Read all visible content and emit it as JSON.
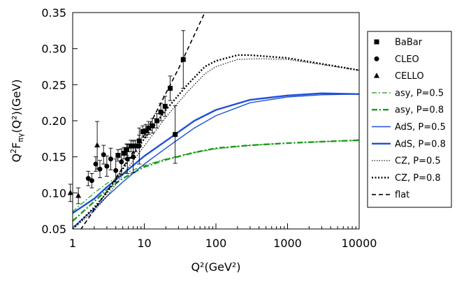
{
  "chart_data": {
    "type": "scatter",
    "xlabel": "Q²(GeV²)",
    "ylabel_parts": {
      "pre": "Q",
      "sup": "2",
      "mid": "F",
      "sub": "πγ",
      "post": "(Q²)(GeV)"
    },
    "x_scale": "log",
    "xlim": [
      1,
      10000
    ],
    "ylim": [
      0.05,
      0.35
    ],
    "xticks": [
      {
        "value": 1,
        "label": "1"
      },
      {
        "value": 10,
        "label": "10"
      },
      {
        "value": 100,
        "label": "100"
      },
      {
        "value": 1000,
        "label": "1000"
      },
      {
        "value": 10000,
        "label": "10000"
      }
    ],
    "yticks": [
      {
        "value": 0.05,
        "label": "0.05"
      },
      {
        "value": 0.1,
        "label": "0.10"
      },
      {
        "value": 0.15,
        "label": "0.15"
      },
      {
        "value": 0.2,
        "label": "0.20"
      },
      {
        "value": 0.25,
        "label": "0.25"
      },
      {
        "value": 0.3,
        "label": "0.30"
      },
      {
        "value": 0.35,
        "label": "0.35"
      }
    ],
    "grid": false,
    "legend_position": "right",
    "data_series": [
      {
        "name": "BaBar",
        "marker": "square",
        "points": [
          [
            4.3,
            0.152,
            0.008
          ],
          [
            5.2,
            0.155,
            0.008
          ],
          [
            5.7,
            0.16,
            0.008
          ],
          [
            6.5,
            0.165,
            0.008
          ],
          [
            7.5,
            0.165,
            0.008
          ],
          [
            8.5,
            0.172,
            0.008
          ],
          [
            9.5,
            0.185,
            0.008
          ],
          [
            10.5,
            0.186,
            0.009
          ],
          [
            11.5,
            0.19,
            0.009
          ],
          [
            13.0,
            0.193,
            0.01
          ],
          [
            15.0,
            0.2,
            0.01
          ],
          [
            17.0,
            0.212,
            0.012
          ],
          [
            19.5,
            0.22,
            0.014
          ],
          [
            23.0,
            0.245,
            0.017
          ],
          [
            27.0,
            0.181,
            0.04
          ],
          [
            35.0,
            0.285,
            0.04
          ]
        ]
      },
      {
        "name": "CLEO",
        "marker": "circle",
        "points": [
          [
            1.65,
            0.12,
            0.01
          ],
          [
            1.85,
            0.117,
            0.01
          ],
          [
            2.1,
            0.14,
            0.01
          ],
          [
            2.4,
            0.133,
            0.012
          ],
          [
            2.7,
            0.153,
            0.013
          ],
          [
            3.0,
            0.137,
            0.014
          ],
          [
            3.4,
            0.147,
            0.015
          ],
          [
            4.0,
            0.131,
            0.016
          ],
          [
            4.8,
            0.143,
            0.018
          ],
          [
            5.8,
            0.147,
            0.02
          ],
          [
            7.0,
            0.15,
            0.022
          ],
          [
            8.5,
            0.165,
            0.025
          ]
        ]
      },
      {
        "name": "CELLO",
        "marker": "triangle",
        "points": [
          [
            0.93,
            0.1,
            0.012
          ],
          [
            1.2,
            0.096,
            0.011
          ],
          [
            2.2,
            0.166,
            0.033
          ]
        ]
      }
    ],
    "curve_series": [
      {
        "name": "asy, P=0.5",
        "color": "#1a9a1a",
        "width": 1.2,
        "dash": "7,3,2,3",
        "x": [
          1,
          2,
          3,
          5,
          10,
          20,
          50,
          100,
          300,
          1000,
          3000,
          10000
        ],
        "y": [
          0.074,
          0.1,
          0.113,
          0.126,
          0.138,
          0.147,
          0.156,
          0.161,
          0.166,
          0.169,
          0.171,
          0.173
        ]
      },
      {
        "name": "asy, P=0.8",
        "color": "#1a9a1a",
        "width": 2.4,
        "dash": "8,3,2,3",
        "x": [
          1,
          2,
          3,
          5,
          10,
          20,
          50,
          100,
          300,
          1000,
          3000,
          10000
        ],
        "y": [
          0.061,
          0.088,
          0.104,
          0.12,
          0.136,
          0.146,
          0.156,
          0.162,
          0.166,
          0.169,
          0.171,
          0.173
        ]
      },
      {
        "name": "AdS, P=0.5",
        "color": "#1f4fd8",
        "width": 1.4,
        "dash": "",
        "x": [
          1,
          2,
          3,
          5,
          10,
          20,
          50,
          100,
          300,
          1000,
          3000,
          10000
        ],
        "y": [
          0.052,
          0.078,
          0.095,
          0.115,
          0.14,
          0.162,
          0.19,
          0.207,
          0.225,
          0.233,
          0.236,
          0.237
        ]
      },
      {
        "name": "AdS, P=0.8",
        "color": "#1f4fd8",
        "width": 2.4,
        "dash": "",
        "x": [
          1,
          2,
          3,
          5,
          10,
          20,
          50,
          100,
          300,
          1000,
          3000,
          10000
        ],
        "y": [
          0.072,
          0.092,
          0.108,
          0.126,
          0.151,
          0.172,
          0.2,
          0.215,
          0.229,
          0.235,
          0.238,
          0.237
        ]
      },
      {
        "name": "CZ, P=0.5",
        "color": "#000000",
        "width": 1.1,
        "dash": "1.5,2",
        "x": [
          1,
          2,
          3,
          5,
          10,
          20,
          40,
          70,
          100,
          200,
          400,
          1000,
          3000,
          10000
        ],
        "y": [
          0.05,
          0.075,
          0.095,
          0.125,
          0.165,
          0.205,
          0.24,
          0.265,
          0.275,
          0.285,
          0.286,
          0.285,
          0.278,
          0.27
        ]
      },
      {
        "name": "CZ, P=0.8",
        "color": "#000000",
        "width": 2.4,
        "dash": "2,2.5",
        "x": [
          1,
          2,
          3,
          5,
          10,
          20,
          40,
          70,
          100,
          200,
          300,
          1000,
          3000,
          10000
        ],
        "y": [
          0.05,
          0.08,
          0.1,
          0.133,
          0.175,
          0.215,
          0.25,
          0.275,
          0.283,
          0.291,
          0.291,
          0.287,
          0.279,
          0.27
        ]
      },
      {
        "name": "flat",
        "color": "#000000",
        "width": 1.6,
        "dash": "6,4",
        "x": [
          1,
          3,
          10,
          30,
          70
        ],
        "y": [
          0.033,
          0.102,
          0.18,
          0.272,
          0.35
        ]
      }
    ],
    "legend": [
      {
        "label": "BaBar",
        "kind": "marker",
        "marker": "square"
      },
      {
        "label": "CLEO",
        "kind": "marker",
        "marker": "circle"
      },
      {
        "label": "CELLO",
        "kind": "marker",
        "marker": "triangle"
      },
      {
        "label": "asy, P=0.5",
        "kind": "line",
        "color": "#1a9a1a",
        "width": 1.2,
        "dash": "7,3,2,3"
      },
      {
        "label": "asy, P=0.8",
        "kind": "line",
        "color": "#1a9a1a",
        "width": 2.4,
        "dash": "8,3,2,3"
      },
      {
        "label": "AdS, P=0.5",
        "kind": "line",
        "color": "#1f4fd8",
        "width": 1.4,
        "dash": ""
      },
      {
        "label": "AdS, P=0.8",
        "kind": "line",
        "color": "#1f4fd8",
        "width": 2.4,
        "dash": ""
      },
      {
        "label": "CZ, P=0.5",
        "kind": "line",
        "color": "#000000",
        "width": 1.1,
        "dash": "1.5,2"
      },
      {
        "label": "CZ, P=0.8",
        "kind": "line",
        "color": "#000000",
        "width": 2.4,
        "dash": "2,2.5"
      },
      {
        "label": "flat",
        "kind": "line",
        "color": "#000000",
        "width": 1.6,
        "dash": "6,4"
      }
    ]
  }
}
